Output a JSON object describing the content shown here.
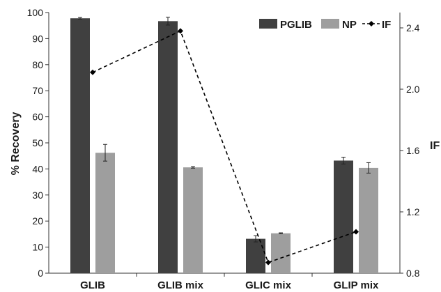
{
  "chart_data": {
    "type": "bar",
    "categories": [
      "GLIB",
      "GLIB mix",
      "GLIC mix",
      "GLIP mix"
    ],
    "series": [
      {
        "name": "PGLIB",
        "axis": "left",
        "kind": "bar",
        "color": "#404040",
        "values": [
          97.8,
          96.7,
          13.2,
          43.2
        ],
        "errors": [
          0.3,
          1.5,
          1.2,
          1.3
        ]
      },
      {
        "name": "NP",
        "axis": "left",
        "kind": "bar",
        "color": "#9e9e9e",
        "values": [
          46.2,
          40.6,
          15.3,
          40.4
        ],
        "errors": [
          3.2,
          0.3,
          0.2,
          2.0
        ]
      },
      {
        "name": "IF",
        "axis": "right",
        "kind": "line",
        "color": "#000000",
        "values": [
          2.11,
          2.38,
          0.87,
          1.07
        ]
      }
    ],
    "ylabel": "% Recovery",
    "y2label": "IF",
    "ylim": [
      0,
      100
    ],
    "yticks": [
      "0",
      "10",
      "20",
      "30",
      "40",
      "50",
      "60",
      "70",
      "80",
      "90",
      "100"
    ],
    "y2lim": [
      0.8,
      2.5
    ],
    "y2ticks": [
      "0.8",
      "1.2",
      "1.6",
      "2.0",
      "2.4"
    ],
    "legend_labels": [
      "PGLIB",
      "NP",
      "IF"
    ],
    "legend_position": "top-right",
    "grid": false
  }
}
